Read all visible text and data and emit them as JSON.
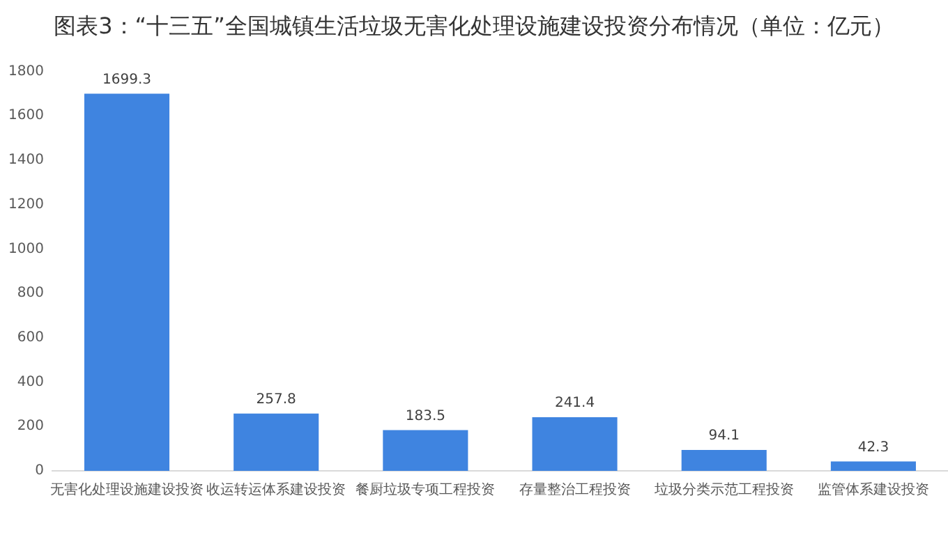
{
  "chart_data": {
    "type": "bar",
    "title": "图表3：“十三五”全国城镇生活垃圾无害化处理设施建设投资分布情况（单位：亿元）",
    "categories": [
      "无害化处理设施建设投资",
      "收运转运体系建设投资",
      "餐厨垃圾专项工程投资",
      "存量整治工程投资",
      "垃圾分类示范工程投资",
      "监管体系建设投资"
    ],
    "values": [
      1699.3,
      257.8,
      183.5,
      241.4,
      94.1,
      42.3
    ],
    "color": "#3f84e0",
    "ylim": [
      0,
      1800
    ],
    "yticks": [
      0,
      200,
      400,
      600,
      800,
      1000,
      1200,
      1400,
      1600,
      1800
    ],
    "grid": false,
    "legend": false,
    "data_labels": true
  }
}
